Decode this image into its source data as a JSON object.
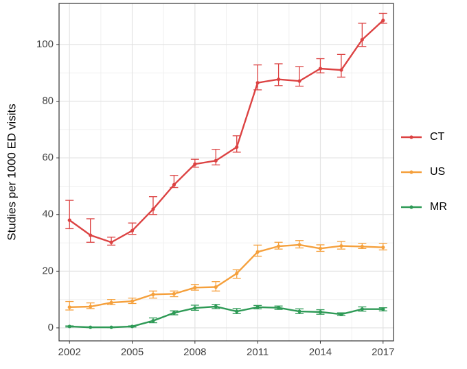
{
  "chart_data": {
    "type": "line",
    "y_label": "Studies per 1000 ED visits",
    "x": [
      2002,
      2003,
      2004,
      2005,
      2006,
      2007,
      2008,
      2009,
      2010,
      2011,
      2012,
      2013,
      2014,
      2015,
      2016,
      2017
    ],
    "xlim": [
      2001.5,
      2017.5
    ],
    "xticks": [
      2002,
      2005,
      2008,
      2011,
      2014,
      2017
    ],
    "ylim": [
      -4.6,
      114.5
    ],
    "yticks": [
      0,
      20,
      40,
      60,
      80,
      100
    ],
    "grid": true,
    "legend": "right",
    "series": [
      {
        "name": "CT",
        "color": "#dc4242",
        "values": [
          38,
          32.7,
          30.2,
          34.3,
          41.9,
          50.5,
          57.8,
          59,
          63.8,
          86.5,
          87.7,
          87.1,
          91.5,
          91,
          101.7,
          108.5
        ],
        "lower": [
          35,
          30.2,
          29.2,
          33,
          40,
          49.5,
          56.7,
          57.5,
          62,
          84,
          85.5,
          85.3,
          90,
          88.5,
          99.3,
          107.5
        ],
        "upper": [
          45,
          38.5,
          32,
          37,
          46.3,
          53.8,
          59.5,
          63,
          67.8,
          92.8,
          93.2,
          92.2,
          95,
          96.5,
          107.5,
          111
        ]
      },
      {
        "name": "US",
        "color": "#f5a03c",
        "values": [
          7.3,
          7.5,
          8.9,
          9.4,
          11.8,
          12,
          14.2,
          14.4,
          19.2,
          26.8,
          28.8,
          29.3,
          28,
          28.9,
          28.7,
          28.4
        ],
        "lower": [
          6.3,
          6.8,
          8.2,
          8.6,
          10.5,
          11,
          13.3,
          13,
          17.5,
          25.3,
          27.8,
          28.2,
          27,
          27.8,
          28,
          27.5
        ],
        "upper": [
          9.3,
          8.8,
          10,
          10.5,
          13,
          13,
          15.3,
          16.3,
          20.5,
          29.2,
          30.2,
          30.8,
          29.3,
          30.5,
          29.8,
          29.8
        ]
      },
      {
        "name": "MR",
        "color": "#2e9a56",
        "values": [
          0.5,
          0.2,
          0.2,
          0.5,
          2.5,
          5.3,
          7,
          7.5,
          5.8,
          7.3,
          7.1,
          5.8,
          5.6,
          4.8,
          6.6,
          6.6
        ],
        "lower": [
          0.3,
          0.1,
          0.1,
          0.3,
          1.8,
          4.6,
          6.2,
          6.8,
          5,
          6.7,
          6.5,
          5,
          4.8,
          4.3,
          5.9,
          6
        ],
        "upper": [
          0.7,
          0.3,
          0.3,
          0.7,
          3.5,
          6,
          8,
          8.3,
          6.8,
          7.9,
          7.7,
          6.7,
          6.4,
          5.3,
          7.4,
          7.1
        ]
      }
    ]
  }
}
